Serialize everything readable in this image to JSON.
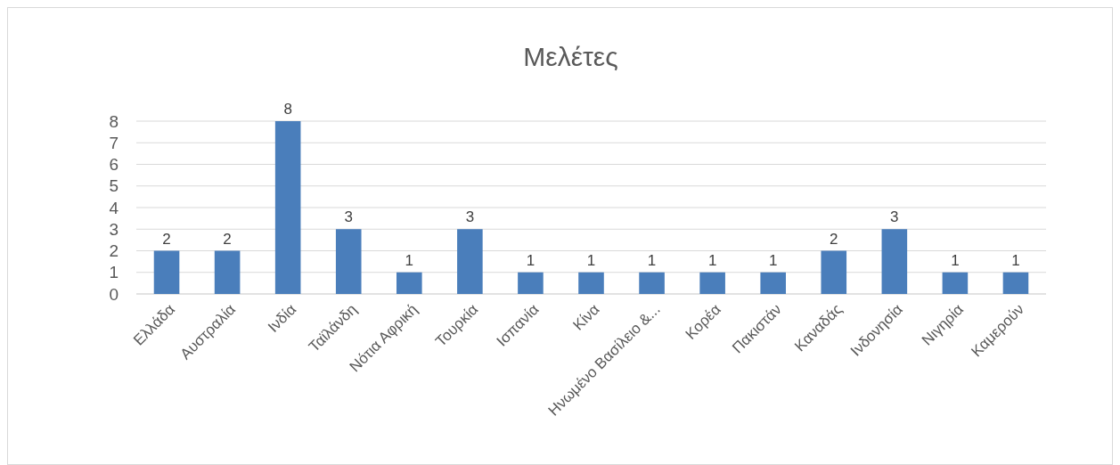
{
  "chart_data": {
    "type": "bar",
    "title": "Μελέτες",
    "categories": [
      "Ελλάδα",
      "Αυστραλία",
      "Ινδία",
      "Ταϊλάνδη",
      "Νότια Αφρική",
      "Τουρκία",
      "Ισπανία",
      "Κίνα",
      "Ηνωμένο Βασίλειο &...",
      "Κορέα",
      "Πακιστάν",
      "Καναδάς",
      "Ινδονησία",
      "Νιγηρία",
      "Καμερούν"
    ],
    "values": [
      2,
      2,
      8,
      3,
      1,
      3,
      1,
      1,
      1,
      1,
      1,
      2,
      3,
      1,
      1
    ],
    "color": "#4a7ebb",
    "ylim": [
      0,
      8
    ],
    "yticks": [
      0,
      1,
      2,
      3,
      4,
      5,
      6,
      7,
      8
    ],
    "grid": true,
    "data_labels": true
  }
}
